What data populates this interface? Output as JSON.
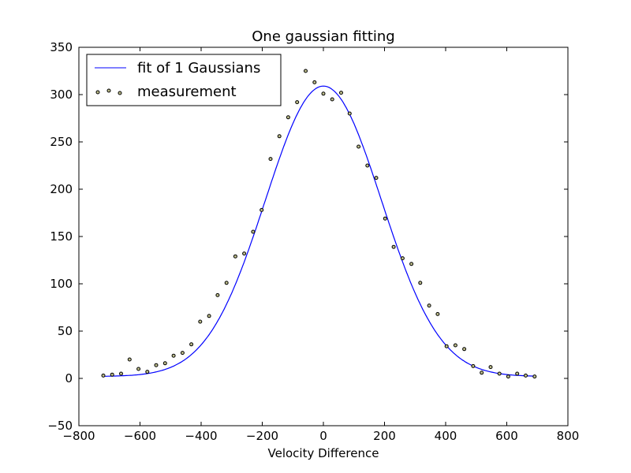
{
  "chart_data": {
    "type": "scatter",
    "title": "One gaussian fitting",
    "xlabel": "Velocity Difference",
    "ylabel": "",
    "xlim": [
      -800,
      800
    ],
    "ylim": [
      -50,
      350
    ],
    "xticks": [
      -800,
      -600,
      -400,
      -200,
      0,
      200,
      400,
      600,
      800
    ],
    "yticks": [
      -50,
      0,
      50,
      100,
      150,
      200,
      250,
      300,
      350
    ],
    "xtick_labels": [
      "−800",
      "−600",
      "−400",
      "−200",
      "0",
      "200",
      "400",
      "600",
      "800"
    ],
    "ytick_labels": [
      "−50",
      "0",
      "50",
      "100",
      "150",
      "200",
      "250",
      "300",
      "350"
    ],
    "grid": false,
    "legend": "top-left",
    "series": [
      {
        "name": "fit of 1 Gaussians",
        "kind": "line",
        "color": "#0000ff",
        "gaussian": {
          "amplitude": 307,
          "mean": 0,
          "sigma": 190,
          "offset": 2
        },
        "x_range": [
          -720,
          690
        ]
      },
      {
        "name": "measurement",
        "kind": "scatter",
        "marker": "dot",
        "color": "#000000",
        "fill": "#bfbf8c",
        "x": [
          -720,
          -691,
          -662,
          -634,
          -605,
          -576,
          -547,
          -518,
          -490,
          -461,
          -432,
          -403,
          -374,
          -346,
          -317,
          -288,
          -259,
          -230,
          -202,
          -173,
          -144,
          -115,
          -86,
          -58,
          -29,
          0,
          29,
          58,
          86,
          115,
          144,
          173,
          202,
          230,
          259,
          288,
          317,
          346,
          374,
          403,
          432,
          461,
          490,
          518,
          547,
          576,
          605,
          634,
          662,
          691
        ],
        "y": [
          3,
          4,
          5,
          20,
          10,
          7,
          14,
          16,
          24,
          27,
          36,
          60,
          66,
          88,
          101,
          129,
          132,
          155,
          178,
          232,
          256,
          276,
          292,
          325,
          313,
          301,
          295,
          302,
          280,
          245,
          225,
          212,
          169,
          139,
          127,
          121,
          101,
          77,
          68,
          34,
          35,
          31,
          13,
          6,
          12,
          5,
          2,
          5,
          3,
          2
        ]
      }
    ]
  }
}
